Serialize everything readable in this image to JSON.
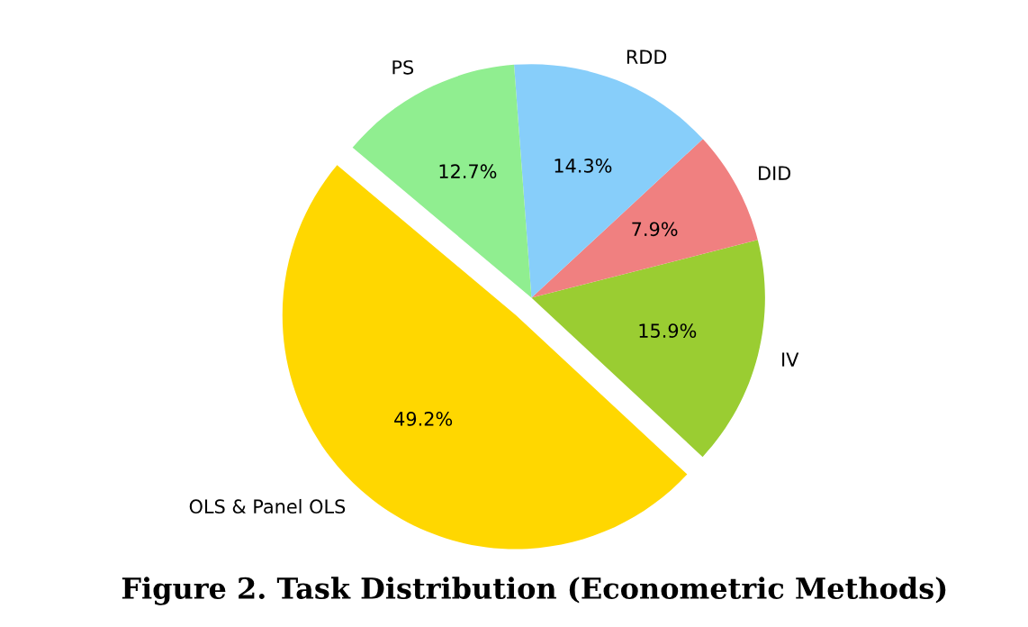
{
  "chart_data": {
    "type": "pie",
    "title": "Figure 2. Task Distribution (Econometric Methods)",
    "categories": [
      "OLS & Panel OLS",
      "IV",
      "DID",
      "RDD",
      "PS"
    ],
    "values": [
      49.2,
      15.9,
      7.9,
      14.3,
      12.7
    ],
    "colors": [
      "#ffd700",
      "#9acd32",
      "#f08080",
      "#87cefa",
      "#90ee90"
    ],
    "value_labels": [
      "49.2%",
      "15.9%",
      "7.9%",
      "14.3%",
      "12.7%"
    ],
    "legend": false
  }
}
